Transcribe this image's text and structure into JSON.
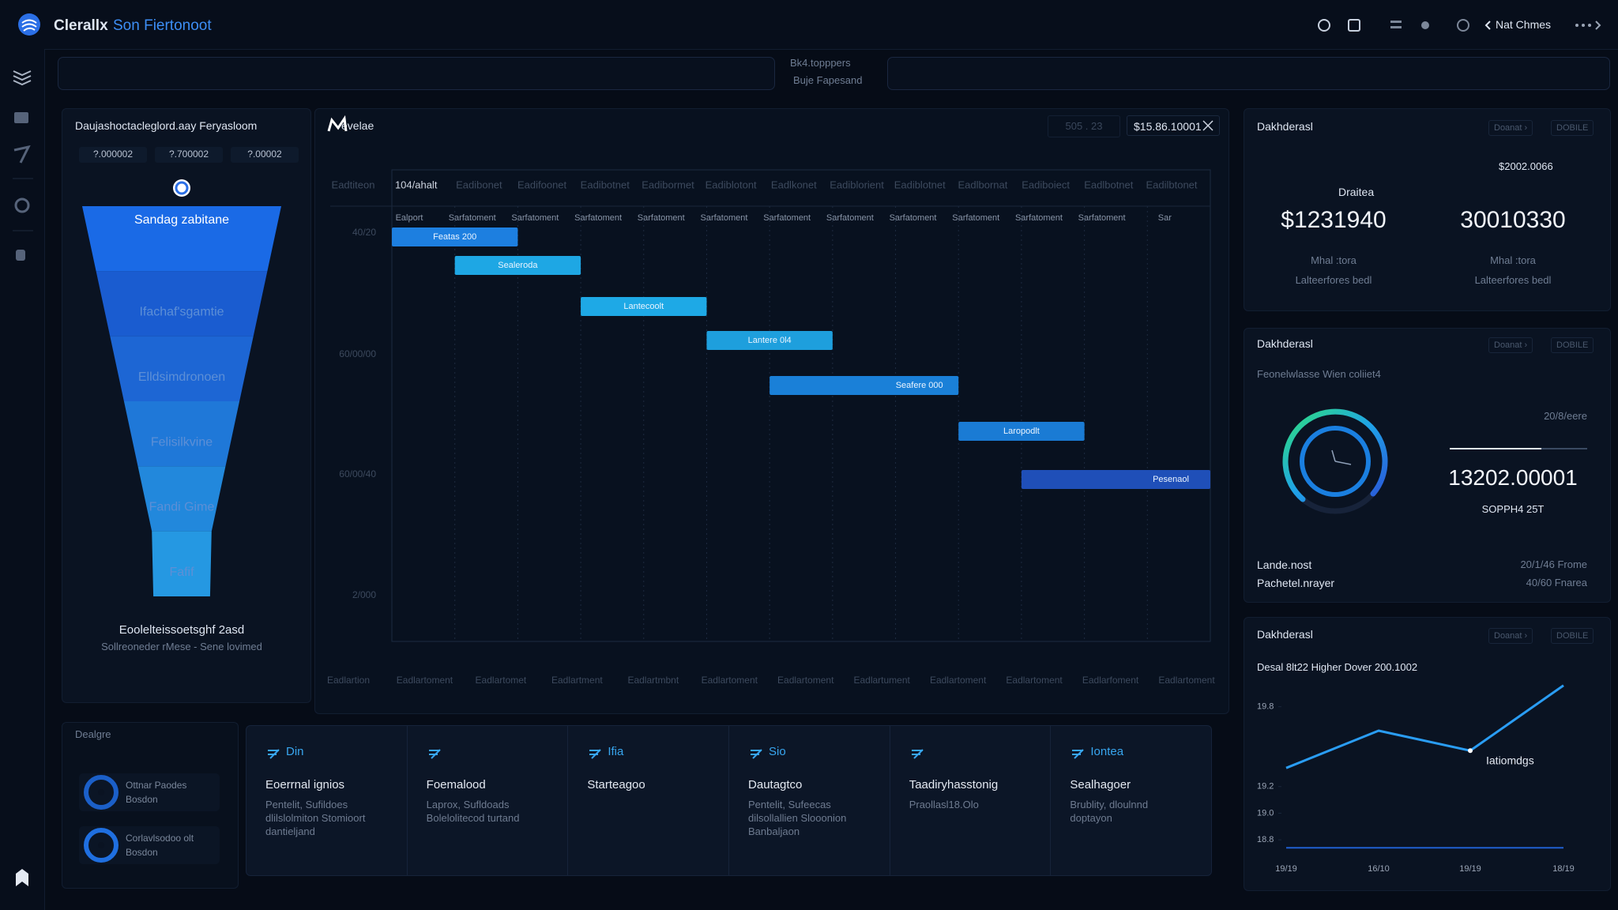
{
  "header": {
    "brand": "Clerallx",
    "product": "Son Fiertonoot",
    "user": "Nat Chmes"
  },
  "search": {
    "line1": "Bk4.topppers",
    "line2": "Buje Fapesand"
  },
  "funnel": {
    "title": "Daujashoctacleglord.aay Feryasloom",
    "tags": [
      "?.000002",
      "?.700002",
      "?.00002"
    ],
    "stages": [
      {
        "label": "Sandag zabitane",
        "value": 100
      },
      {
        "label": "Ifachaf'sgamtie",
        "value": 86
      },
      {
        "label": "Elldsimdronoen",
        "value": 72
      },
      {
        "label": "Felisilkvine",
        "value": 58
      },
      {
        "label": "Fandi Gime",
        "value": 44
      },
      {
        "label": "Fafif",
        "value": 30
      }
    ],
    "footer_title": "Eoolelteissoetsghf 2asd",
    "footer_subtitle": "Sollreoneder rMese - Sene lovimed"
  },
  "gantt": {
    "title": "evelae",
    "range": "505 . 23",
    "total": "$15.86.10001",
    "columns": [
      "Eadtiteon",
      "104/ahalt",
      "Eadibonet",
      "Eadifoonet",
      "Eadibotnet",
      "Eadibormet",
      "Eadiblotont",
      "Eadlkonet",
      "Eadiblorient",
      "Eadiblotnet",
      "Eadlbornat",
      "Eadiboiect",
      "Eadlbotnet",
      "Eadilbtonet"
    ],
    "subheaders": [
      "Ealport",
      "Sarfatoment",
      "Sarfatoment",
      "Sarfatoment",
      "Sarfatoment",
      "Sarfatoment",
      "Sarfatoment",
      "Sarfatoment",
      "Sarfatoment",
      "Sarfatoment",
      "Sarfatoment",
      "Sarfatoment",
      "Sar"
    ],
    "y_labels": [
      "40/20",
      "60/00/00",
      "60/00/40",
      "2/000"
    ],
    "x_labels": [
      "Eadlartion",
      "Eadlartoment",
      "Eadlartomet",
      "Eadlartment",
      "Eadlartmbnt",
      "Eadlartoment",
      "Eadlartoment",
      "Eadlartument",
      "Eadlartoment",
      "Eadlartoment",
      "Eadlarfoment",
      "Eadlartoment"
    ],
    "tasks": [
      {
        "label": "Featas 200",
        "start": 0,
        "end": 2,
        "color": "#1d7fe0"
      },
      {
        "label": "Sealeroda",
        "start": 1,
        "end": 3,
        "color": "#1ea7e4"
      },
      {
        "label": "Lantecoolt",
        "start": 3,
        "end": 5,
        "color": "#1ea9e6"
      },
      {
        "label": "Lantere 0l4",
        "start": 5,
        "end": 7,
        "color": "#1e9fdd"
      },
      {
        "label": "Seafere 000",
        "start": 6,
        "end": 9,
        "color": "#1a80d8"
      },
      {
        "label": "Laropodlt",
        "start": 9,
        "end": 11,
        "color": "#1a7bd4"
      },
      {
        "label": "Pesenaol",
        "start": 10,
        "end": 13,
        "color": "#1f4fb8"
      }
    ]
  },
  "summary": {
    "title": "Dakhderasl",
    "buttons": [
      "Doanat ›",
      "DOBILE"
    ],
    "corner": "$2002.0066",
    "label": "Draitea",
    "metrics": [
      {
        "value": "$1231940",
        "line1": "Mhal :tora",
        "line2": "Lalteerfores bedl"
      },
      {
        "value": "30010330",
        "line1": "Mhal :tora",
        "line2": "Lalteerfores bedl"
      }
    ]
  },
  "gauge_panel": {
    "title": "Dakhderasl",
    "buttons": [
      "Doanat ›",
      "DOBILE"
    ],
    "subtitle": "Feonelwlasse Wien coliiet4",
    "note": "20/8/eere",
    "value": "13202.00001",
    "value_caption": "SOPPH4 25T",
    "rows": [
      {
        "label": "Lande.nost",
        "value": "20/1/46 Frome"
      },
      {
        "label": "Pachetel.nrayer",
        "value": "40/60 Fnarea"
      }
    ]
  },
  "trend": {
    "title": "Dakhderasl",
    "buttons": [
      "Doanat ›",
      "DOBILE"
    ],
    "legend": "Desal 8lt22 Higher Dover 200.1002",
    "categories": [
      "19/19",
      "16/10",
      "19/19",
      "18/19"
    ],
    "ylim": [
      18.7,
      20.0
    ],
    "yticks": [
      19.8,
      19.2,
      {
        "value": 19,
        "label": "19.0"
      },
      18.8
    ],
    "series": [
      {
        "color": "#2a9df4",
        "values": [
          19.34,
          19.62,
          19.47,
          19.96
        ]
      },
      {
        "color": "#1f5fd0",
        "values": [
          18.74,
          18.74,
          18.74,
          18.74
        ]
      }
    ],
    "annotation": "Iatiomdgs"
  },
  "deals": {
    "title": "Dealgre",
    "items": [
      {
        "name": "Ottnar Paodes",
        "sub": "Bosdon"
      },
      {
        "name": "Corlavlsodoo olt",
        "sub": "Bosdon"
      }
    ]
  },
  "cards": [
    {
      "title": "Din",
      "heading": "Eoerrnal ignios",
      "lines": [
        "Pentelit, Sufildoes",
        "dlilslolmiton Stomioort",
        "dantieljand"
      ]
    },
    {
      "heading": "Foemalood",
      "lines": [
        "Laprox, Sufldoads",
        "Bolelolitecod turtand"
      ]
    },
    {
      "title": "Ifia",
      "heading": "Starteagoo"
    },
    {
      "title": "Sio",
      "heading": "Dautagtco",
      "lines": [
        "Pentelit, Sufeecas",
        "dilsollallien Slooonion",
        "Banbaljaon"
      ]
    },
    {
      "heading": "Taadiryhasstonig",
      "lines": [
        "Praollasl18.Olo"
      ]
    },
    {
      "title": "Iontea",
      "heading": "Sealhagoer",
      "lines": [
        "Brublity, dloulnnd",
        "doptayon"
      ]
    }
  ]
}
